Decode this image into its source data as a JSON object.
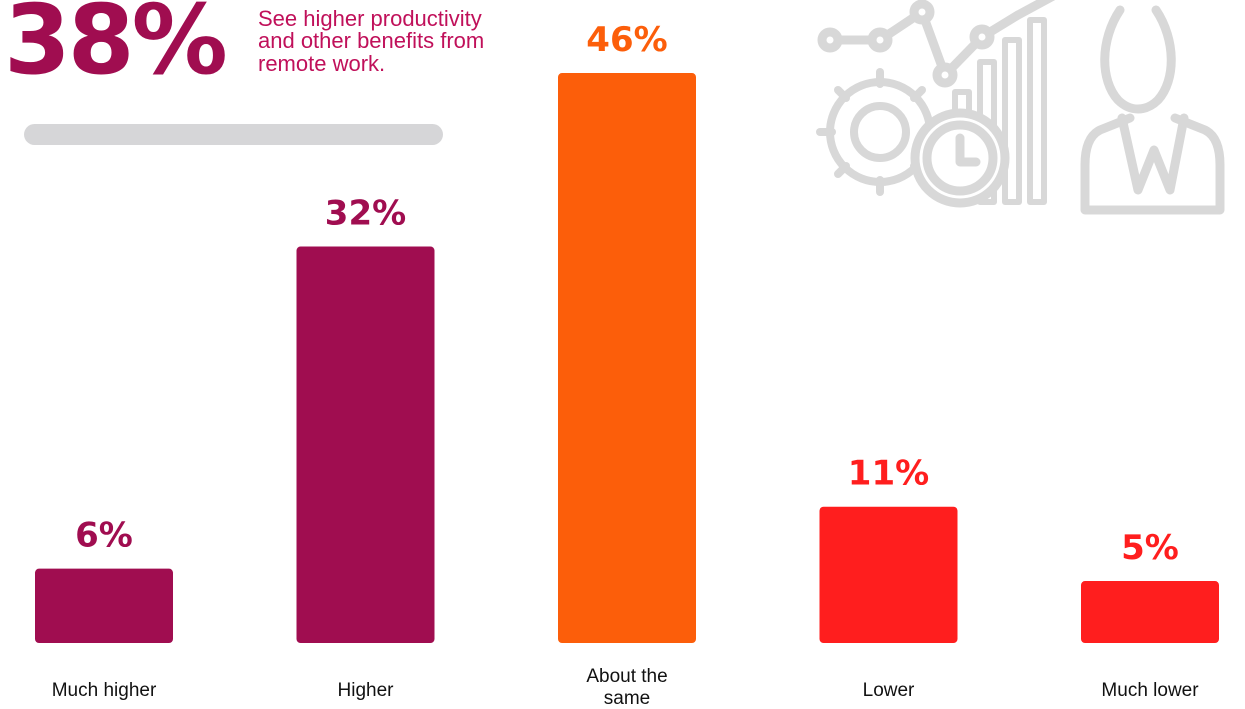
{
  "headline": {
    "stat": "38%",
    "text": "See higher productivity\nand other benefits from\nremote work.",
    "color": "#a00d50",
    "text_color": "#c0105a"
  },
  "chart_data": {
    "type": "bar",
    "categories": [
      "Much higher",
      "Higher",
      "About the same",
      "Lower",
      "Much lower"
    ],
    "category_label_lines": [
      [
        "Much higher"
      ],
      [
        "Higher"
      ],
      [
        "About the",
        "same"
      ],
      [
        "Lower"
      ],
      [
        "Much lower"
      ]
    ],
    "values": [
      6,
      32,
      46,
      11,
      5
    ],
    "value_labels": [
      "6%",
      "32%",
      "46%",
      "11%",
      "5%"
    ],
    "colors": [
      "#a00d50",
      "#a00d50",
      "#fc5e0a",
      "#ff1e1e",
      "#ff1e1e"
    ],
    "title": "",
    "xlabel": "",
    "ylabel": "",
    "ylim": [
      0,
      50
    ],
    "grid": false,
    "legend": "none"
  },
  "decor": {
    "icons": [
      "line-graph-icon",
      "gear-icon",
      "clock-icon",
      "bar-chart-icon",
      "person-icon"
    ],
    "color": "#d8d8d8"
  }
}
